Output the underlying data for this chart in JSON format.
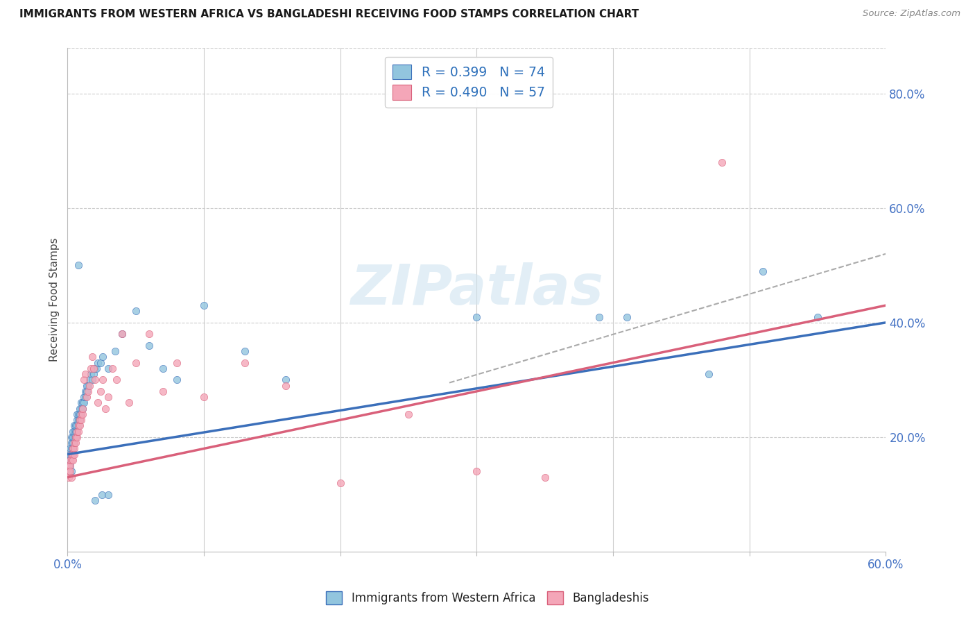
{
  "title": "IMMIGRANTS FROM WESTERN AFRICA VS BANGLADESHI RECEIVING FOOD STAMPS CORRELATION CHART",
  "source": "Source: ZipAtlas.com",
  "ylabel": "Receiving Food Stamps",
  "ylabel_right_ticks": [
    "80.0%",
    "60.0%",
    "40.0%",
    "20.0%"
  ],
  "ylabel_right_vals": [
    0.8,
    0.6,
    0.4,
    0.2
  ],
  "xlim": [
    0.0,
    0.6
  ],
  "ylim": [
    0.0,
    0.88
  ],
  "legend_blue_R": "R = 0.399",
  "legend_blue_N": "N = 74",
  "legend_pink_R": "R = 0.490",
  "legend_pink_N": "N = 57",
  "legend_label_blue": "Immigrants from Western Africa",
  "legend_label_pink": "Bangladeshis",
  "color_blue": "#92c5de",
  "color_pink": "#f4a6b8",
  "color_blue_line": "#3b6fba",
  "color_pink_line": "#d9607a",
  "color_dashed": "#aaaaaa",
  "watermark": "ZIPatlas",
  "blue_line_x0": 0.0,
  "blue_line_y0": 0.17,
  "blue_line_x1": 0.6,
  "blue_line_y1": 0.4,
  "pink_line_x0": 0.0,
  "pink_line_y0": 0.13,
  "pink_line_x1": 0.6,
  "pink_line_y1": 0.43,
  "dash_line_x0": 0.28,
  "dash_line_y0": 0.295,
  "dash_line_x1": 0.6,
  "dash_line_y1": 0.52,
  "blue_points_x": [
    0.001,
    0.001,
    0.001,
    0.002,
    0.002,
    0.002,
    0.002,
    0.003,
    0.003,
    0.003,
    0.003,
    0.003,
    0.004,
    0.004,
    0.004,
    0.004,
    0.005,
    0.005,
    0.005,
    0.005,
    0.006,
    0.006,
    0.006,
    0.007,
    0.007,
    0.007,
    0.007,
    0.008,
    0.008,
    0.008,
    0.009,
    0.009,
    0.009,
    0.01,
    0.01,
    0.01,
    0.011,
    0.011,
    0.012,
    0.012,
    0.013,
    0.013,
    0.014,
    0.014,
    0.015,
    0.016,
    0.017,
    0.018,
    0.019,
    0.02,
    0.021,
    0.022,
    0.024,
    0.026,
    0.03,
    0.035,
    0.04,
    0.05,
    0.06,
    0.07,
    0.08,
    0.1,
    0.13,
    0.16,
    0.3,
    0.39,
    0.41,
    0.47,
    0.51,
    0.55,
    0.02,
    0.025,
    0.03,
    0.008
  ],
  "blue_points_y": [
    0.15,
    0.16,
    0.14,
    0.16,
    0.17,
    0.15,
    0.18,
    0.17,
    0.18,
    0.19,
    0.2,
    0.14,
    0.18,
    0.19,
    0.2,
    0.21,
    0.19,
    0.2,
    0.21,
    0.22,
    0.2,
    0.21,
    0.22,
    0.21,
    0.22,
    0.23,
    0.24,
    0.22,
    0.23,
    0.24,
    0.23,
    0.24,
    0.25,
    0.24,
    0.25,
    0.26,
    0.25,
    0.26,
    0.26,
    0.27,
    0.27,
    0.28,
    0.28,
    0.29,
    0.29,
    0.3,
    0.31,
    0.3,
    0.31,
    0.32,
    0.32,
    0.33,
    0.33,
    0.34,
    0.32,
    0.35,
    0.38,
    0.42,
    0.36,
    0.32,
    0.3,
    0.43,
    0.35,
    0.3,
    0.41,
    0.41,
    0.41,
    0.31,
    0.49,
    0.41,
    0.09,
    0.1,
    0.1,
    0.5
  ],
  "pink_points_x": [
    0.001,
    0.001,
    0.001,
    0.002,
    0.002,
    0.002,
    0.003,
    0.003,
    0.003,
    0.004,
    0.004,
    0.004,
    0.005,
    0.005,
    0.005,
    0.006,
    0.006,
    0.007,
    0.007,
    0.008,
    0.008,
    0.009,
    0.009,
    0.01,
    0.01,
    0.011,
    0.011,
    0.012,
    0.013,
    0.014,
    0.015,
    0.016,
    0.017,
    0.018,
    0.019,
    0.02,
    0.022,
    0.024,
    0.026,
    0.028,
    0.03,
    0.033,
    0.036,
    0.04,
    0.045,
    0.05,
    0.06,
    0.07,
    0.08,
    0.1,
    0.13,
    0.16,
    0.2,
    0.25,
    0.3,
    0.35,
    0.48
  ],
  "pink_points_y": [
    0.13,
    0.14,
    0.15,
    0.15,
    0.16,
    0.14,
    0.16,
    0.17,
    0.13,
    0.17,
    0.18,
    0.16,
    0.18,
    0.19,
    0.17,
    0.19,
    0.2,
    0.2,
    0.21,
    0.21,
    0.22,
    0.22,
    0.23,
    0.23,
    0.24,
    0.24,
    0.25,
    0.3,
    0.31,
    0.27,
    0.28,
    0.29,
    0.32,
    0.34,
    0.32,
    0.3,
    0.26,
    0.28,
    0.3,
    0.25,
    0.27,
    0.32,
    0.3,
    0.38,
    0.26,
    0.33,
    0.38,
    0.28,
    0.33,
    0.27,
    0.33,
    0.29,
    0.12,
    0.24,
    0.14,
    0.13,
    0.68
  ]
}
